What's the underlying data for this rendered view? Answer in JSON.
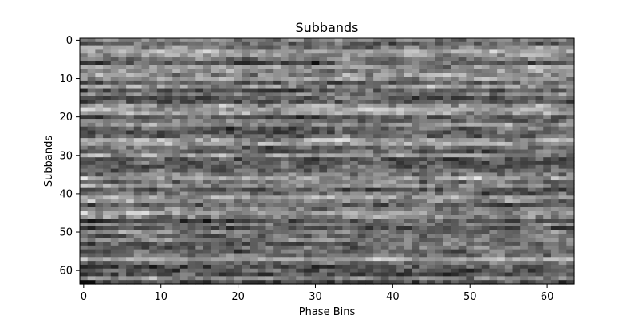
{
  "chart_data": {
    "type": "heatmap",
    "title": "Subbands",
    "xlabel": "Phase Bins",
    "ylabel": "Subbands",
    "x_range": [
      0,
      63
    ],
    "y_range": [
      0,
      63
    ],
    "y_inverted": true,
    "x_ticks": [
      "0",
      "10",
      "20",
      "30",
      "40",
      "50",
      "60"
    ],
    "y_ticks": [
      "0",
      "10",
      "20",
      "30",
      "40",
      "50",
      "60"
    ],
    "colormap": "gray",
    "rows": 64,
    "cols": 64,
    "grid": false,
    "legend": "none"
  }
}
